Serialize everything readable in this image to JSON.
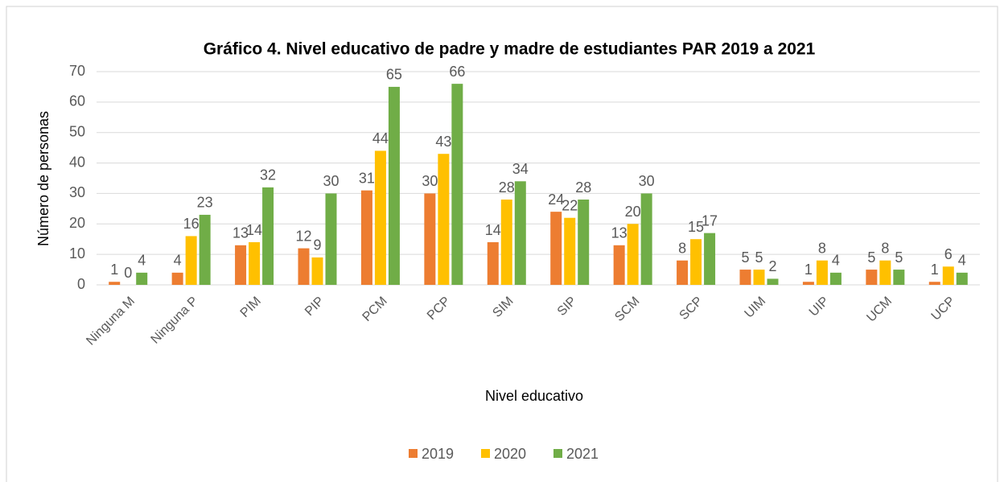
{
  "chart_data": {
    "type": "bar",
    "title": "Gráfico 4. Nivel educativo de padre y madre de estudiantes PAR 2019 a 2021",
    "x_label": "Nivel educativo",
    "y_label": "Número de personas",
    "categories": [
      "Ninguna M",
      "Ninguna P",
      "PIM",
      "PIP",
      "PCM",
      "PCP",
      "SIM",
      "SIP",
      "SCM",
      "SCP",
      "UIM",
      "UIP",
      "UCM",
      "UCP"
    ],
    "series": [
      {
        "name": "2019",
        "color": "#ed7d31",
        "values": [
          1,
          4,
          13,
          12,
          31,
          30,
          14,
          24,
          13,
          8,
          5,
          1,
          5,
          1
        ]
      },
      {
        "name": "2020",
        "color": "#ffc000",
        "values": [
          0,
          16,
          14,
          9,
          44,
          43,
          28,
          22,
          20,
          15,
          5,
          8,
          8,
          6
        ]
      },
      {
        "name": "2021",
        "color": "#70ad47",
        "values": [
          4,
          23,
          32,
          30,
          65,
          66,
          34,
          28,
          30,
          17,
          2,
          4,
          5,
          4
        ]
      }
    ],
    "ylim": [
      0,
      70
    ],
    "yticks": [
      0,
      10,
      20,
      30,
      40,
      50,
      60,
      70
    ],
    "grid": true,
    "legend": "bottom"
  }
}
